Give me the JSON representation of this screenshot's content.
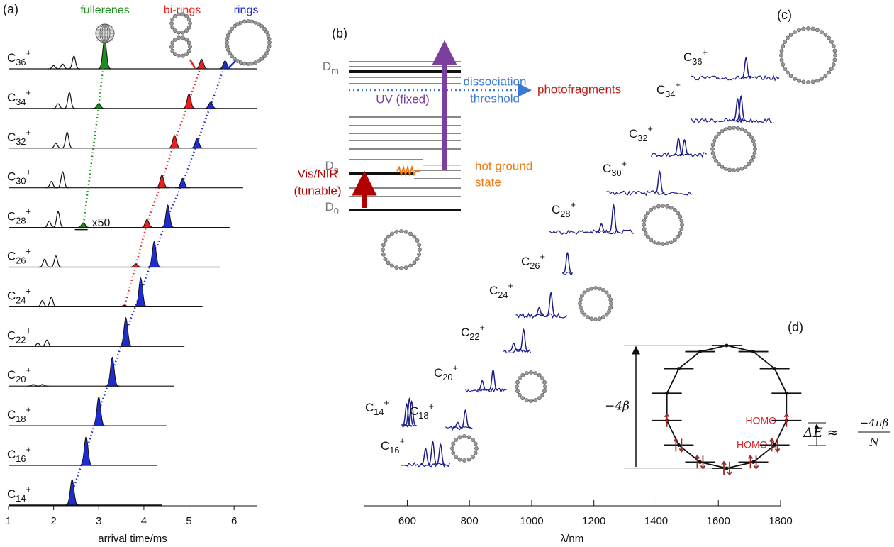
{
  "chart_data": [
    {
      "type": "arrival-traces",
      "panel_label": "(a)",
      "xlabel": "arrival time/ms",
      "xlim": [
        1,
        6.5
      ],
      "xticks": [
        1,
        2,
        3,
        4,
        5,
        6
      ],
      "kinds": {
        "fullerene": {
          "label": "fullerenes",
          "color": "#1e8c1e"
        },
        "biring": {
          "label": "bi-rings",
          "color": "#e8201c"
        },
        "ring": {
          "label": "rings",
          "color": "#1f2ccc"
        }
      },
      "scale_note": "x50",
      "traces": [
        {
          "label": {
            "base": "C",
            "sub": "36",
            "sup": "+"
          },
          "end": 6.5,
          "other_peaks": [
            [
              2.0,
              0.1
            ],
            [
              2.2,
              0.15
            ],
            [
              2.45,
              0.4
            ]
          ],
          "fullerene": {
            "time": 3.13,
            "height": 0.95
          },
          "biring": {
            "time": 5.28,
            "height": 0.3
          },
          "ring": {
            "time": 5.8,
            "height": 0.25
          }
        },
        {
          "label": {
            "base": "C",
            "sub": "34",
            "sup": "+"
          },
          "end": 6.5,
          "other_peaks": [
            [
              2.1,
              0.15
            ],
            [
              2.35,
              0.5
            ]
          ],
          "fullerene": {
            "time": 3.0,
            "height": 0.15
          },
          "biring": {
            "time": 5.0,
            "height": 0.45
          },
          "ring": {
            "time": 5.48,
            "height": 0.2
          }
        },
        {
          "label": {
            "base": "C",
            "sub": "32",
            "sup": "+"
          },
          "end": 6.5,
          "other_peaks": [
            [
              2.05,
              0.15
            ],
            [
              2.3,
              0.5
            ]
          ],
          "biring": {
            "time": 4.68,
            "height": 0.4
          },
          "ring": {
            "time": 5.18,
            "height": 0.3
          }
        },
        {
          "label": {
            "base": "C",
            "sub": "30",
            "sup": "+"
          },
          "end": 6.2,
          "other_peaks": [
            [
              1.95,
              0.2
            ],
            [
              2.2,
              0.5
            ]
          ],
          "biring": {
            "time": 4.4,
            "height": 0.4
          },
          "ring": {
            "time": 4.86,
            "height": 0.3
          }
        },
        {
          "label": {
            "base": "C",
            "sub": "28",
            "sup": "+"
          },
          "end": 5.9,
          "other_peaks": [
            [
              1.9,
              0.2
            ],
            [
              2.1,
              0.5
            ]
          ],
          "fullerene": {
            "time": 2.66,
            "height": 0.15
          },
          "biring": {
            "time": 4.07,
            "height": 0.25
          },
          "ring": {
            "time": 4.53,
            "height": 0.7
          }
        },
        {
          "label": {
            "base": "C",
            "sub": "26",
            "sup": "+"
          },
          "end": 5.7,
          "other_peaks": [
            [
              1.8,
              0.25
            ],
            [
              2.05,
              0.35
            ]
          ],
          "biring": {
            "time": 3.82,
            "height": 0.1
          },
          "ring": {
            "time": 4.23,
            "height": 0.8
          }
        },
        {
          "label": {
            "base": "C",
            "sub": "24",
            "sup": "+"
          },
          "end": 5.3,
          "other_peaks": [
            [
              1.75,
              0.2
            ],
            [
              1.95,
              0.3
            ]
          ],
          "biring": {
            "time": 3.57,
            "height": 0.05
          },
          "ring": {
            "time": 3.93,
            "height": 0.9
          }
        },
        {
          "label": {
            "base": "C",
            "sub": "22",
            "sup": "+"
          },
          "end": 4.9,
          "other_peaks": [
            [
              1.65,
              0.1
            ],
            [
              1.85,
              0.2
            ]
          ],
          "ring": {
            "time": 3.6,
            "height": 0.9
          }
        },
        {
          "label": {
            "base": "C",
            "sub": "20",
            "sup": "+"
          },
          "end": 4.67,
          "other_peaks": [
            [
              1.55,
              0.05
            ],
            [
              1.75,
              0.05
            ]
          ],
          "ring": {
            "time": 3.3,
            "height": 0.9
          }
        },
        {
          "label": {
            "base": "C",
            "sub": "18",
            "sup": "+"
          },
          "end": 4.5,
          "other_peaks": [],
          "ring": {
            "time": 3.0,
            "height": 0.9
          }
        },
        {
          "label": {
            "base": "C",
            "sub": "16",
            "sup": "+"
          },
          "end": 4.3,
          "other_peaks": [],
          "ring": {
            "time": 2.72,
            "height": 0.9
          }
        },
        {
          "label": {
            "base": "C",
            "sub": "14",
            "sup": "+"
          },
          "end": 4.4,
          "other_peaks": [],
          "ring": {
            "time": 2.41,
            "height": 0.8
          }
        }
      ]
    },
    {
      "type": "offset-spectra",
      "panel_label": "(c)",
      "xlabel": "λ/nm",
      "xlim": [
        460,
        1800
      ],
      "xticks": [
        600,
        800,
        1000,
        1200,
        1400,
        1600,
        1800
      ],
      "color": "#1c1c8c",
      "spectra": [
        {
          "label": {
            "base": "C",
            "sub": "14",
            "sup": "+"
          },
          "range": [
            582,
            618
          ],
          "peaks": [
            [
              598,
              0.8
            ],
            [
              607,
              1.0
            ],
            [
              614,
              0.9
            ]
          ]
        },
        {
          "label": {
            "base": "C",
            "sub": "16",
            "sup": "+"
          },
          "range": [
            582,
            741
          ],
          "peaks": [
            [
              659,
              0.6
            ],
            [
              682,
              0.85
            ],
            [
              707,
              0.75
            ]
          ]
        },
        {
          "label": {
            "base": "C",
            "sub": "18",
            "sup": "+"
          },
          "range": [
            723,
            814
          ],
          "peaks": [
            [
              762,
              0.2
            ],
            [
              787,
              0.65
            ]
          ]
        },
        {
          "label": {
            "base": "C",
            "sub": "20",
            "sup": "+"
          },
          "range": [
            787,
            923
          ],
          "peaks": [
            [
              841,
              0.35
            ],
            [
              876,
              0.75
            ]
          ]
        },
        {
          "label": {
            "base": "C",
            "sub": "22",
            "sup": "+"
          },
          "range": [
            910,
            1001
          ],
          "peaks": [
            [
              942,
              0.3
            ],
            [
              974,
              0.8
            ]
          ]
        },
        {
          "label": {
            "base": "C",
            "sub": "24",
            "sup": "+"
          },
          "range": [
            949,
            1115
          ],
          "peaks": [
            [
              1024,
              0.3
            ],
            [
              1062,
              0.85
            ]
          ]
        },
        {
          "label": {
            "base": "C",
            "sub": "26",
            "sup": "+"
          },
          "range": [
            1099,
            1133
          ],
          "peaks": [
            [
              1115,
              0.75
            ]
          ]
        },
        {
          "label": {
            "base": "C",
            "sub": "28",
            "sup": "+"
          },
          "range": [
            1058,
            1331
          ],
          "peaks": [
            [
              1224,
              0.3
            ],
            [
              1263,
              1.0
            ]
          ]
        },
        {
          "label": {
            "base": "C",
            "sub": "30",
            "sup": "+"
          },
          "range": [
            1240,
            1518
          ],
          "peaks": [
            [
              1411,
              0.8
            ]
          ]
        },
        {
          "label": {
            "base": "C",
            "sub": "32",
            "sup": "+"
          },
          "range": [
            1384,
            1566
          ],
          "peaks": [
            [
              1472,
              0.6
            ],
            [
              1491,
              0.55
            ]
          ]
        },
        {
          "label": {
            "base": "C",
            "sub": "34",
            "sup": "+"
          },
          "range": [
            1513,
            1775
          ],
          "peaks": [
            [
              1662,
              0.8
            ],
            [
              1673,
              0.9
            ]
          ]
        },
        {
          "label": {
            "base": "C",
            "sub": "36",
            "sup": "+"
          },
          "range": [
            1513,
            1798
          ],
          "peaks": [
            [
              1689,
              0.75
            ]
          ]
        }
      ]
    }
  ],
  "energy_diagram": {
    "panel_label": "(b)",
    "dm": {
      "base": "D",
      "sub": "m"
    },
    "dn": {
      "base": "D",
      "sub": "n"
    },
    "d0": {
      "base": "D",
      "sub": "0"
    },
    "threshold": [
      "dissociation",
      "threshold"
    ],
    "products": "photofragments",
    "uv": "UV (fixed)",
    "visnir": [
      "Vis/NIR",
      "(tunable)"
    ],
    "hot": [
      "hot ground",
      "state"
    ]
  },
  "huckel_diagram": {
    "panel_label": "(d)",
    "bandwidth": "−4β",
    "homo": "HOMO",
    "homo_minus_1": "HOMO-1",
    "gap": {
      "lhs": "ΔE ≈",
      "numerator": "−4πβ",
      "denominator": "N"
    }
  }
}
